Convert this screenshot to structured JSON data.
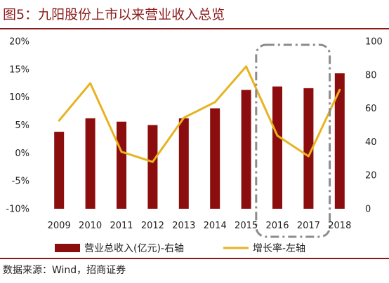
{
  "title": "图5：九阳股份上市以来营业收入总览",
  "source": "数据来源：Wind，招商证券",
  "colors": {
    "accent": "#8b1a1a",
    "bar": "#8b0d0d",
    "line": "#e8b321",
    "highlight_box": "#8c8c8c"
  },
  "chart_data": {
    "type": "bar",
    "categories": [
      "2009",
      "2010",
      "2011",
      "2012",
      "2013",
      "2014",
      "2015",
      "2016",
      "2017",
      "2018"
    ],
    "series": [
      {
        "name": "营业总收入(亿元)-右轴",
        "type": "bar",
        "axis": "right",
        "values": [
          46,
          54,
          52,
          50,
          54,
          60,
          71,
          73,
          72,
          81
        ]
      },
      {
        "name": "增长率-左轴",
        "type": "line",
        "axis": "left",
        "values": [
          0.058,
          0.125,
          0.002,
          -0.016,
          0.063,
          0.091,
          0.155,
          0.031,
          -0.006,
          0.113
        ]
      }
    ],
    "y_left": {
      "ticks": [
        "20%",
        "15%",
        "10%",
        "5%",
        "0%",
        "-5%",
        "-10%"
      ],
      "range": [
        -0.1,
        0.2
      ]
    },
    "y_right": {
      "ticks": [
        "100",
        "80",
        "60",
        "40",
        "20",
        "0"
      ],
      "range": [
        0,
        100
      ]
    },
    "legend": {
      "position": "bottom"
    },
    "annotation": {
      "type": "dash-dot box",
      "covers": [
        "2016",
        "2017"
      ]
    },
    "grid": false
  }
}
